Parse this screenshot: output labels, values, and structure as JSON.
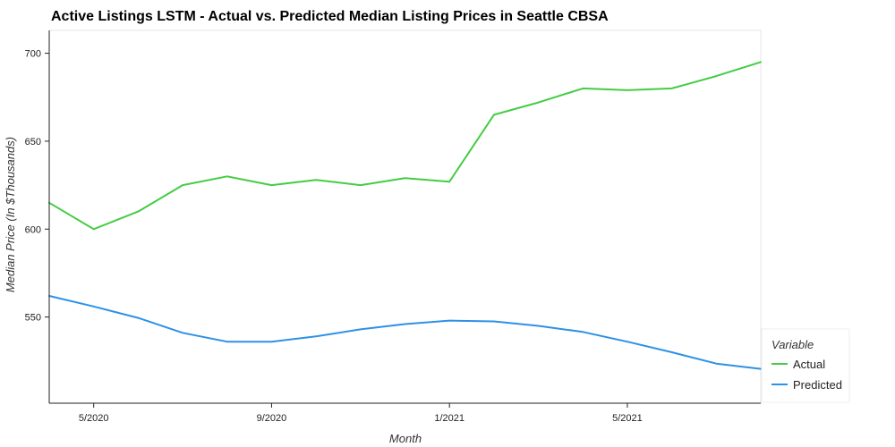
{
  "chart_data": {
    "type": "line",
    "title": "Active Listings LSTM - Actual vs. Predicted Median Listing Prices in Seattle CBSA",
    "xlabel": "Month",
    "ylabel": "Median Price (In $Thousands)",
    "x": [
      "2020-04",
      "2020-05",
      "2020-06",
      "2020-07",
      "2020-08",
      "2020-09",
      "2020-10",
      "2020-11",
      "2020-12",
      "2021-01",
      "2021-02",
      "2021-03",
      "2021-04",
      "2021-05",
      "2021-06",
      "2021-07",
      "2021-08"
    ],
    "x_ticks": [
      {
        "x": "2020-05",
        "label": "5/2020"
      },
      {
        "x": "2020-09",
        "label": "9/2020"
      },
      {
        "x": "2021-01",
        "label": "1/2021"
      },
      {
        "x": "2021-05",
        "label": "5/2021"
      }
    ],
    "y_ticks": [
      550,
      600,
      650,
      700
    ],
    "ylim": [
      501,
      713
    ],
    "grid": false,
    "legend": {
      "title": "Variable",
      "position": "bottom-right"
    },
    "series": [
      {
        "name": "Actual",
        "color": "#44cc44",
        "values": [
          615,
          600,
          610,
          625,
          630,
          625,
          628,
          625,
          629,
          627,
          665,
          672,
          680,
          679,
          680,
          687,
          695
        ]
      },
      {
        "name": "Predicted",
        "color": "#2e91e5",
        "values": [
          562,
          556,
          549.5,
          541,
          536,
          536,
          539,
          543,
          546,
          548,
          547.5,
          545,
          541.5,
          536,
          530,
          523.5,
          520.5
        ]
      }
    ]
  }
}
